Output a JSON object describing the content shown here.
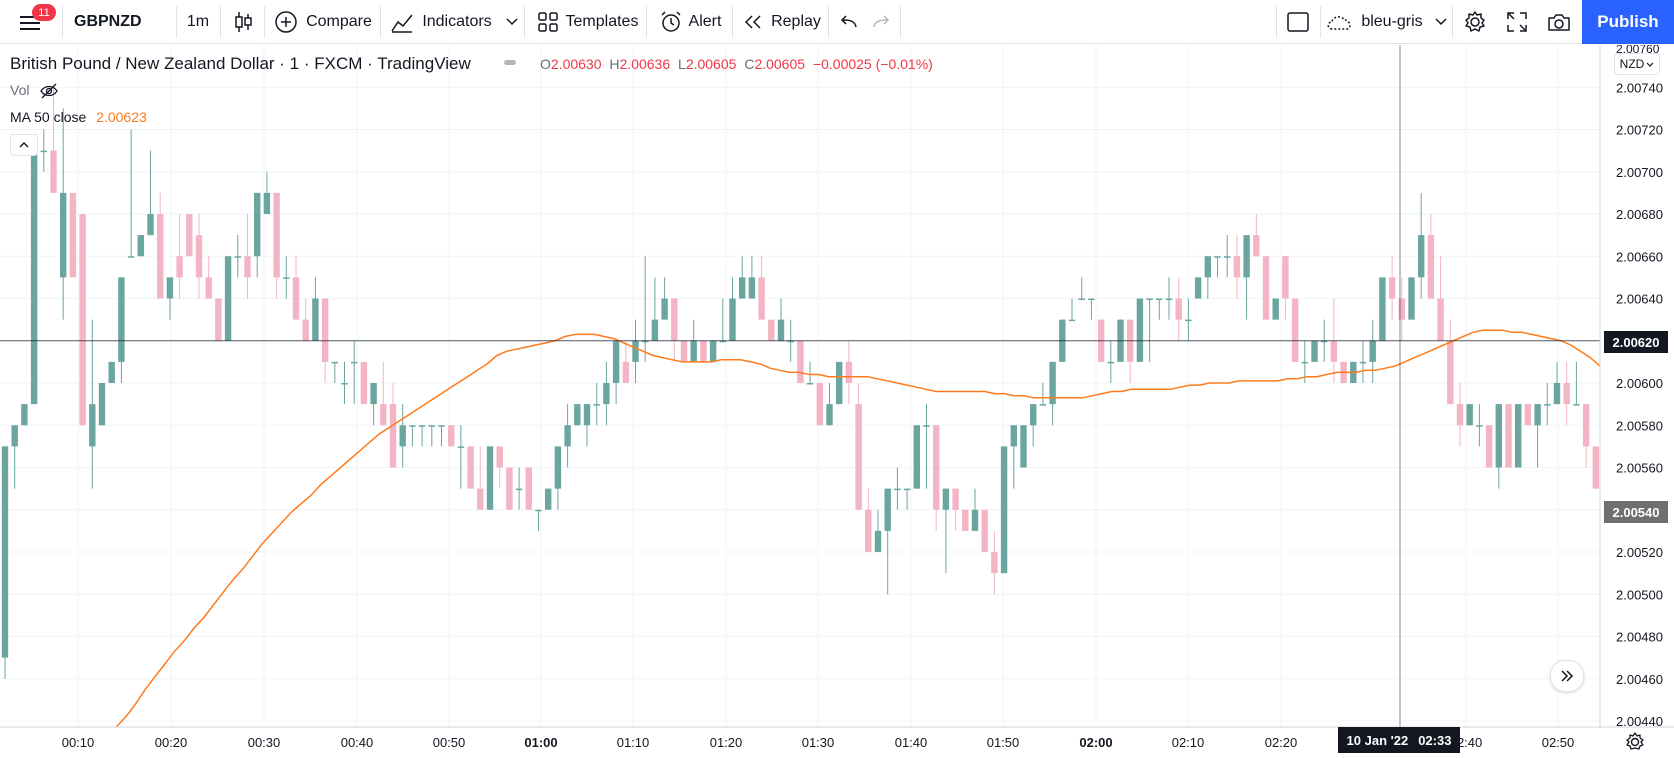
{
  "toolbar": {
    "notifications": "11",
    "symbol": "GBPNZD",
    "interval": "1m",
    "compare": "Compare",
    "indicators": "Indicators",
    "templates": "Templates",
    "alert": "Alert",
    "replay": "Replay",
    "layout_name": "bleu-gris",
    "publish": "Publish"
  },
  "legend": {
    "title": "British Pound / New Zealand Dollar · 1 · FXCM · TradingView",
    "o_label": "O",
    "o": "2.00630",
    "h_label": "H",
    "h": "2.00636",
    "l_label": "L",
    "l": "2.00605",
    "c_label": "C",
    "c": "2.00605",
    "change": "−0.00025 (−0.01%)",
    "vol": "Vol",
    "ma_label": "MA 50 close",
    "ma_value": "2.00623"
  },
  "price_scale": {
    "currency": "NZD",
    "top_partial": "2.00760",
    "crosshair_price": "2.00620",
    "last_price": "2.00540"
  },
  "crosshair_time": {
    "date": "10 Jan '22",
    "time": "02:33"
  },
  "colors": {
    "up": "#6ba5a0",
    "down": "#f3b4c3",
    "ma": "#ff7a1a",
    "accent": "#2962ff",
    "last_price_bg": "#6f6f6f"
  },
  "chart_data": {
    "type": "candlestick",
    "y_range": [
      2.0044,
      2.0076
    ],
    "yticks": [
      2.0044,
      2.0046,
      2.0048,
      2.005,
      2.0052,
      2.0054,
      2.0056,
      2.0058,
      2.006,
      2.0062,
      2.0064,
      2.0066,
      2.0068,
      2.007,
      2.0072,
      2.0074
    ],
    "xticks": [
      {
        "label": "00:10",
        "bold": false
      },
      {
        "label": "00:20",
        "bold": false
      },
      {
        "label": "00:30",
        "bold": false
      },
      {
        "label": "00:40",
        "bold": false
      },
      {
        "label": "00:50",
        "bold": false
      },
      {
        "label": "01:00",
        "bold": true
      },
      {
        "label": "01:10",
        "bold": false
      },
      {
        "label": "01:20",
        "bold": false
      },
      {
        "label": "01:30",
        "bold": false
      },
      {
        "label": "01:40",
        "bold": false
      },
      {
        "label": "01:50",
        "bold": false
      },
      {
        "label": "02:00",
        "bold": true
      },
      {
        "label": "02:10",
        "bold": false
      },
      {
        "label": "02:20",
        "bold": false
      },
      {
        "label": "02:40",
        "bold": false
      },
      {
        "label": "02:50",
        "bold": false
      }
    ],
    "series": [
      {
        "name": "MA 50 close",
        "values": [
          2.00437,
          2.00442,
          2.00448,
          2.00455,
          2.00461,
          2.00467,
          2.00473,
          2.00478,
          2.00484,
          2.00489,
          2.00495,
          2.00501,
          2.00507,
          2.00512,
          2.00518,
          2.00524,
          2.00529,
          2.00534,
          2.00539,
          2.00543,
          2.00547,
          2.00552,
          2.00556,
          2.0056,
          2.00564,
          2.00568,
          2.00572,
          2.00576,
          2.00579,
          2.00582,
          2.00585,
          2.00588,
          2.00591,
          2.00594,
          2.00597,
          2.006,
          2.00603,
          2.00606,
          2.00609,
          2.00613,
          2.00615,
          2.00616,
          2.00617,
          2.00618,
          2.00619,
          2.0062,
          2.00622,
          2.00623,
          2.00623,
          2.00623,
          2.00622,
          2.00621,
          2.00619,
          2.00617,
          2.00615,
          2.00613,
          2.00612,
          2.00611,
          2.0061,
          2.0061,
          2.0061,
          2.0061,
          2.00611,
          2.00611,
          2.00611,
          2.0061,
          2.00609,
          2.00607,
          2.00606,
          2.00605,
          2.00605,
          2.00604,
          2.00604,
          2.00603,
          2.00603,
          2.00603,
          2.00603,
          2.00603,
          2.00602,
          2.00601,
          2.006,
          2.00599,
          2.00598,
          2.00597,
          2.00596,
          2.00596,
          2.00596,
          2.00596,
          2.00596,
          2.00596,
          2.00595,
          2.00595,
          2.00594,
          2.00594,
          2.00593,
          2.00593,
          2.00593,
          2.00593,
          2.00593,
          2.00593,
          2.00594,
          2.00595,
          2.00596,
          2.00596,
          2.00597,
          2.00597,
          2.00597,
          2.00597,
          2.00597,
          2.00598,
          2.00599,
          2.00599,
          2.006,
          2.006,
          2.006,
          2.00601,
          2.00601,
          2.00601,
          2.00601,
          2.00601,
          2.00602,
          2.00602,
          2.00603,
          2.00603,
          2.00604,
          2.00605,
          2.00605,
          2.00605,
          2.00606,
          2.00606,
          2.00607,
          2.00608,
          2.0061,
          2.00612,
          2.00614,
          2.00616,
          2.00618,
          2.0062,
          2.00622,
          2.00624,
          2.00625,
          2.00625,
          2.00625,
          2.00624,
          2.00624,
          2.00623,
          2.00622,
          2.00621,
          2.0062,
          2.00618,
          2.00615,
          2.00612,
          2.00608
        ]
      }
    ],
    "candles": [
      [
        2.0047,
        2.0057,
        2.0046,
        2.0057
      ],
      [
        2.0057,
        2.0058,
        2.0055,
        2.0058
      ],
      [
        2.0058,
        2.0059,
        2.0058,
        2.0059
      ],
      [
        2.0059,
        2.0071,
        2.0059,
        2.0071
      ],
      [
        2.0071,
        2.0072,
        2.007,
        2.0071
      ],
      [
        2.0071,
        2.0074,
        2.0069,
        2.0069
      ],
      [
        2.0065,
        2.0073,
        2.0063,
        2.0069
      ],
      [
        2.0069,
        2.0069,
        2.0065,
        2.0065
      ],
      [
        2.0068,
        2.0068,
        2.0058,
        2.0058
      ],
      [
        2.0057,
        2.0063,
        2.0055,
        2.0059
      ],
      [
        2.0058,
        2.006,
        2.0058,
        2.006
      ],
      [
        2.006,
        2.0061,
        2.006,
        2.0061
      ],
      [
        2.0061,
        2.0065,
        2.006,
        2.0065
      ],
      [
        2.0066,
        2.0072,
        2.0066,
        2.0066
      ],
      [
        2.0066,
        2.0067,
        2.0066,
        2.0067
      ],
      [
        2.0067,
        2.0071,
        2.0067,
        2.0068
      ],
      [
        2.0068,
        2.0069,
        2.0064,
        2.0064
      ],
      [
        2.0064,
        2.0065,
        2.0063,
        2.0065
      ],
      [
        2.0066,
        2.0068,
        2.0064,
        2.0065
      ],
      [
        2.0068,
        2.0068,
        2.0066,
        2.0066
      ],
      [
        2.0067,
        2.0068,
        2.0064,
        2.0065
      ],
      [
        2.0065,
        2.0066,
        2.0064,
        2.0064
      ],
      [
        2.0064,
        2.0064,
        2.0062,
        2.0062
      ],
      [
        2.0062,
        2.0066,
        2.0062,
        2.0066
      ],
      [
        2.0066,
        2.0067,
        2.0065,
        2.0066
      ],
      [
        2.0066,
        2.0068,
        2.0064,
        2.0065
      ],
      [
        2.0066,
        2.0069,
        2.0065,
        2.0069
      ],
      [
        2.0068,
        2.007,
        2.0068,
        2.0069
      ],
      [
        2.0069,
        2.0069,
        2.0064,
        2.0065
      ],
      [
        2.0065,
        2.0066,
        2.0064,
        2.0065
      ],
      [
        2.0065,
        2.0066,
        2.0063,
        2.0063
      ],
      [
        2.0063,
        2.0064,
        2.0062,
        2.0062
      ],
      [
        2.0062,
        2.0065,
        2.0062,
        2.0064
      ],
      [
        2.0064,
        2.0064,
        2.006,
        2.0061
      ],
      [
        2.0061,
        2.0061,
        2.006,
        2.0061
      ],
      [
        2.006,
        2.0061,
        2.0059,
        2.006
      ],
      [
        2.0061,
        2.0062,
        2.0059,
        2.0061
      ],
      [
        2.0061,
        2.0061,
        2.0059,
        2.0059
      ],
      [
        2.0059,
        2.006,
        2.0058,
        2.006
      ],
      [
        2.0059,
        2.0061,
        2.0058,
        2.0058
      ],
      [
        2.0059,
        2.006,
        2.0056,
        2.0056
      ],
      [
        2.0057,
        2.0059,
        2.0056,
        2.0058
      ],
      [
        2.0058,
        2.0058,
        2.0057,
        2.0058
      ],
      [
        2.0058,
        2.0058,
        2.0057,
        2.0058
      ],
      [
        2.0058,
        2.0058,
        2.0057,
        2.0058
      ],
      [
        2.0058,
        2.0058,
        2.0057,
        2.0058
      ],
      [
        2.0058,
        2.0058,
        2.0057,
        2.0057
      ],
      [
        2.0057,
        2.0058,
        2.0055,
        2.0057
      ],
      [
        2.0057,
        2.0057,
        2.0055,
        2.0055
      ],
      [
        2.0055,
        2.0057,
        2.0054,
        2.0054
      ],
      [
        2.0054,
        2.0057,
        2.0054,
        2.0057
      ],
      [
        2.0057,
        2.0057,
        2.0055,
        2.0056
      ],
      [
        2.0056,
        2.0056,
        2.0054,
        2.0054
      ],
      [
        2.0055,
        2.0056,
        2.0054,
        2.0055
      ],
      [
        2.0056,
        2.0056,
        2.0054,
        2.0054
      ],
      [
        2.0054,
        2.0054,
        2.0053,
        2.0054
      ],
      [
        2.0054,
        2.0055,
        2.0054,
        2.0055
      ],
      [
        2.0055,
        2.0057,
        2.0054,
        2.0057
      ],
      [
        2.0057,
        2.0059,
        2.0056,
        2.0058
      ],
      [
        2.0058,
        2.0059,
        2.0058,
        2.0059
      ],
      [
        2.0058,
        2.0059,
        2.0057,
        2.0059
      ],
      [
        2.0059,
        2.006,
        2.0058,
        2.0059
      ],
      [
        2.0059,
        2.0061,
        2.0058,
        2.006
      ],
      [
        2.006,
        2.0062,
        2.0059,
        2.0062
      ],
      [
        2.0061,
        2.0062,
        2.006,
        2.006
      ],
      [
        2.0061,
        2.0063,
        2.006,
        2.0062
      ],
      [
        2.0062,
        2.0066,
        2.0061,
        2.0062
      ],
      [
        2.0062,
        2.0065,
        2.0062,
        2.0063
      ],
      [
        2.0063,
        2.0065,
        2.0063,
        2.0064
      ],
      [
        2.0064,
        2.0064,
        2.0061,
        2.0062
      ],
      [
        2.0062,
        2.0062,
        2.0061,
        2.0061
      ],
      [
        2.0061,
        2.0063,
        2.0061,
        2.0062
      ],
      [
        2.0062,
        2.0062,
        2.0061,
        2.0061
      ],
      [
        2.0061,
        2.0062,
        2.0061,
        2.0062
      ],
      [
        2.0062,
        2.0064,
        2.0062,
        2.0062
      ],
      [
        2.0062,
        2.0065,
        2.0062,
        2.0064
      ],
      [
        2.0064,
        2.0066,
        2.0064,
        2.0065
      ],
      [
        2.0064,
        2.0066,
        2.0064,
        2.0065
      ],
      [
        2.0065,
        2.0066,
        2.0063,
        2.0063
      ],
      [
        2.0063,
        2.0063,
        2.0062,
        2.0062
      ],
      [
        2.0062,
        2.0064,
        2.0062,
        2.0063
      ],
      [
        2.0062,
        2.0063,
        2.0061,
        2.0062
      ],
      [
        2.0062,
        2.0062,
        2.006,
        2.006
      ],
      [
        2.006,
        2.0061,
        2.006,
        2.006
      ],
      [
        2.006,
        2.006,
        2.0058,
        2.0058
      ],
      [
        2.0058,
        2.006,
        2.0058,
        2.0059
      ],
      [
        2.0059,
        2.0061,
        2.0059,
        2.0061
      ],
      [
        2.0061,
        2.0062,
        2.0059,
        2.006
      ],
      [
        2.0059,
        2.006,
        2.0054,
        2.0054
      ],
      [
        2.0054,
        2.0055,
        2.0052,
        2.0052
      ],
      [
        2.0052,
        2.0054,
        2.0052,
        2.0053
      ],
      [
        2.0053,
        2.0055,
        2.005,
        2.0055
      ],
      [
        2.0055,
        2.0056,
        2.0054,
        2.0055
      ],
      [
        2.0055,
        2.0055,
        2.0054,
        2.0055
      ],
      [
        2.0055,
        2.0058,
        2.0055,
        2.0058
      ],
      [
        2.0058,
        2.0059,
        2.0055,
        2.0058
      ],
      [
        2.0058,
        2.0058,
        2.0053,
        2.0054
      ],
      [
        2.0054,
        2.0055,
        2.0051,
        2.0055
      ],
      [
        2.0055,
        2.0055,
        2.0053,
        2.0054
      ],
      [
        2.0054,
        2.0054,
        2.0053,
        2.0053
      ],
      [
        2.0053,
        2.0055,
        2.0053,
        2.0054
      ],
      [
        2.0054,
        2.0054,
        2.0052,
        2.0052
      ],
      [
        2.0052,
        2.0053,
        2.005,
        2.0051
      ],
      [
        2.0051,
        2.0057,
        2.0051,
        2.0057
      ],
      [
        2.0057,
        2.0058,
        2.0055,
        2.0058
      ],
      [
        2.0056,
        2.0058,
        2.0056,
        2.0058
      ],
      [
        2.0058,
        2.0059,
        2.0057,
        2.0059
      ],
      [
        2.0059,
        2.006,
        2.0059,
        2.0059
      ],
      [
        2.0059,
        2.0061,
        2.0058,
        2.0061
      ],
      [
        2.0061,
        2.0063,
        2.0061,
        2.0063
      ],
      [
        2.0063,
        2.0064,
        2.0063,
        2.0063
      ],
      [
        2.0064,
        2.0065,
        2.0064,
        2.0064
      ],
      [
        2.0064,
        2.0064,
        2.0063,
        2.0064
      ],
      [
        2.0063,
        2.0063,
        2.0061,
        2.0061
      ],
      [
        2.0061,
        2.0062,
        2.006,
        2.0061
      ],
      [
        2.0061,
        2.0063,
        2.0061,
        2.0063
      ],
      [
        2.0063,
        2.0063,
        2.006,
        2.0061
      ],
      [
        2.0061,
        2.0064,
        2.0061,
        2.0064
      ],
      [
        2.0064,
        2.0064,
        2.0061,
        2.0064
      ],
      [
        2.0064,
        2.0064,
        2.0063,
        2.0064
      ],
      [
        2.0064,
        2.0065,
        2.0063,
        2.0064
      ],
      [
        2.0064,
        2.0065,
        2.0062,
        2.0063
      ],
      [
        2.0063,
        2.0064,
        2.0062,
        2.0063
      ],
      [
        2.0064,
        2.0065,
        2.0064,
        2.0065
      ],
      [
        2.0065,
        2.0066,
        2.0064,
        2.0066
      ],
      [
        2.0066,
        2.0066,
        2.0065,
        2.0066
      ],
      [
        2.0066,
        2.0067,
        2.0065,
        2.0066
      ],
      [
        2.0066,
        2.0067,
        2.0064,
        2.0065
      ],
      [
        2.0065,
        2.0067,
        2.0063,
        2.0067
      ],
      [
        2.0067,
        2.0068,
        2.0066,
        2.0066
      ],
      [
        2.0066,
        2.0066,
        2.0063,
        2.0063
      ],
      [
        2.0063,
        2.0064,
        2.0063,
        2.0064
      ],
      [
        2.0066,
        2.0066,
        2.0063,
        2.0064
      ],
      [
        2.0064,
        2.0064,
        2.0061,
        2.0061
      ],
      [
        2.0061,
        2.0062,
        2.006,
        2.0061
      ],
      [
        2.0061,
        2.0062,
        2.0061,
        2.0062
      ],
      [
        2.0062,
        2.0063,
        2.0061,
        2.0062
      ],
      [
        2.0062,
        2.0064,
        2.006,
        2.0061
      ],
      [
        2.0061,
        2.0061,
        2.006,
        2.006
      ],
      [
        2.006,
        2.0061,
        2.006,
        2.0061
      ],
      [
        2.0061,
        2.0062,
        2.006,
        2.0061
      ],
      [
        2.0061,
        2.0063,
        2.006,
        2.0062
      ],
      [
        2.0062,
        2.0065,
        2.0062,
        2.0065
      ],
      [
        2.0065,
        2.0066,
        2.0063,
        2.0064
      ],
      [
        2.0064,
        2.0065,
        2.0062,
        2.0063
      ],
      [
        2.0063,
        2.0065,
        2.0063,
        2.0065
      ],
      [
        2.0065,
        2.0069,
        2.0064,
        2.0067
      ],
      [
        2.0067,
        2.0068,
        2.0064,
        2.0064
      ],
      [
        2.0064,
        2.0066,
        2.0062,
        2.0062
      ],
      [
        2.0062,
        2.0063,
        2.0059,
        2.0059
      ],
      [
        2.0059,
        2.006,
        2.0057,
        2.0058
      ],
      [
        2.0058,
        2.0059,
        2.0058,
        2.0059
      ],
      [
        2.0058,
        2.0059,
        2.0057,
        2.0058
      ],
      [
        2.0058,
        2.0058,
        2.0056,
        2.0056
      ],
      [
        2.0056,
        2.0059,
        2.0055,
        2.0059
      ],
      [
        2.0059,
        2.0059,
        2.0056,
        2.0056
      ],
      [
        2.0056,
        2.0059,
        2.0056,
        2.0059
      ],
      [
        2.0059,
        2.0059,
        2.0058,
        2.0058
      ],
      [
        2.0058,
        2.0059,
        2.0056,
        2.0059
      ],
      [
        2.0059,
        2.006,
        2.0058,
        2.0059
      ],
      [
        2.0059,
        2.0061,
        2.0059,
        2.006
      ],
      [
        2.006,
        2.0061,
        2.0058,
        2.0059
      ],
      [
        2.0059,
        2.0061,
        2.0059,
        2.0059
      ],
      [
        2.0059,
        2.0059,
        2.0056,
        2.0057
      ],
      [
        2.0057,
        2.0057,
        2.0055,
        2.0055
      ],
      [
        2.0055,
        2.0055,
        2.0053,
        2.0054
      ],
      [
        2.0054,
        2.0055,
        2.0052,
        2.0054
      ],
      [
        2.0054,
        2.0054,
        2.0051,
        2.0052
      ],
      [
        2.0052,
        2.0054,
        2.0052,
        2.0054
      ]
    ]
  }
}
